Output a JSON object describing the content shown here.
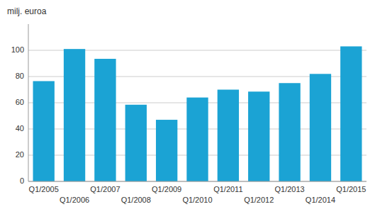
{
  "chart_data": {
    "type": "bar",
    "ylabel": "milj. euroa",
    "categories": [
      "Q1/2005",
      "Q1/2006",
      "Q1/2007",
      "Q1/2008",
      "Q1/2009",
      "Q1/2010",
      "Q1/2011",
      "Q1/2012",
      "Q1/2013",
      "Q1/2014",
      "Q1/2015"
    ],
    "values": [
      76.5,
      101.0,
      93.5,
      58.5,
      47.0,
      64.0,
      70.0,
      68.5,
      75.0,
      82.0,
      103.0
    ],
    "color": "#1ba3d4",
    "ylim": [
      0,
      120
    ],
    "yticks": [
      0,
      20,
      40,
      60,
      80,
      100
    ],
    "grid": true
  }
}
